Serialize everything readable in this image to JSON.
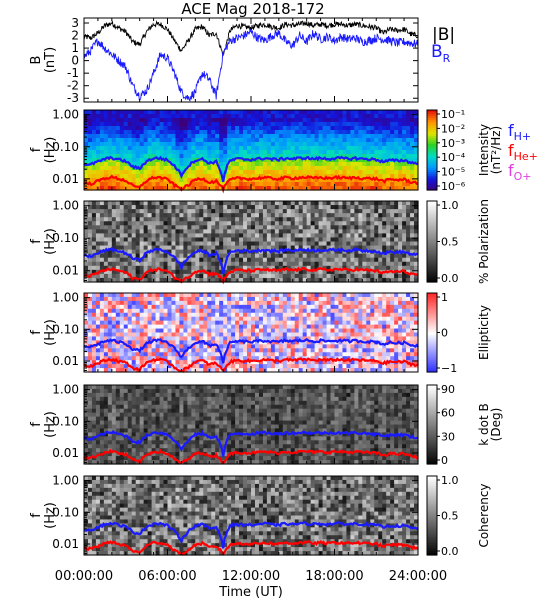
{
  "title": "ACE Mag 2018-172",
  "colors": {
    "background": "#ffffff",
    "bmag": "#000000",
    "br": "#1a1aff",
    "fH": "#1a1aff",
    "fHe": "#ff0000",
    "fO": "#e040e0"
  },
  "legend": {
    "bmag": "|B|",
    "br": "B",
    "br_sub": "R",
    "fH": "f",
    "fH_sub": "H+",
    "fHe": "f",
    "fHe_sub": "He+",
    "fO": "f",
    "fO_sub": "O+"
  },
  "x_axis": {
    "label": "Time (UT)",
    "range_hours": [
      0,
      24
    ],
    "ticks": [
      "00:00:00",
      "06:00:00",
      "12:00:00",
      "18:00:00",
      "24:00:00"
    ]
  },
  "chart_data": [
    {
      "type": "line",
      "panel": "field",
      "ylabel": "B",
      "yunit": "(nT)",
      "ylim": [
        -3.3,
        3.4
      ],
      "yticks": [
        -3,
        -2,
        -1,
        0,
        1,
        2,
        3
      ],
      "series": [
        {
          "name": "|B|",
          "x": [
            0,
            0.5,
            1,
            1.5,
            2,
            2.5,
            3,
            3.5,
            4,
            4.5,
            5,
            5.5,
            6,
            6.5,
            7,
            7.5,
            8,
            8.5,
            9,
            9.5,
            10,
            10.5,
            11,
            11.5,
            12,
            12.5,
            13,
            13.5,
            14,
            14.5,
            15,
            15.5,
            16,
            16.5,
            17,
            17.5,
            18,
            18.5,
            19,
            19.5,
            20,
            20.5,
            21,
            21.5,
            22,
            22.5,
            23,
            23.5,
            24
          ],
          "values": [
            1.9,
            1.8,
            2.2,
            2.8,
            3.0,
            2.6,
            2.3,
            1.5,
            1.3,
            2.3,
            2.9,
            2.9,
            2.5,
            1.6,
            0.8,
            1.6,
            2.5,
            2.7,
            2.0,
            2.2,
            0.4,
            2.4,
            2.8,
            2.7,
            2.6,
            2.8,
            2.9,
            2.7,
            2.6,
            2.9,
            2.8,
            2.9,
            3.0,
            2.8,
            2.9,
            2.8,
            2.9,
            2.9,
            2.8,
            2.9,
            2.8,
            2.7,
            2.6,
            2.2,
            2.5,
            2.4,
            2.5,
            2.1,
            2.0
          ]
        },
        {
          "name": "B_R",
          "x": [
            0,
            0.5,
            1,
            1.5,
            2,
            2.5,
            3,
            3.5,
            4,
            4.5,
            5,
            5.5,
            6,
            6.5,
            7,
            7.5,
            8,
            8.5,
            9,
            9.5,
            10,
            10.5,
            11,
            11.5,
            12,
            12.5,
            13,
            13.5,
            14,
            14.5,
            15,
            15.5,
            16,
            16.5,
            17,
            17.5,
            18,
            18.5,
            19,
            19.5,
            20,
            20.5,
            21,
            21.5,
            22,
            22.5,
            23,
            23.5,
            24
          ],
          "values": [
            0.3,
            0.8,
            1.6,
            1.0,
            0.5,
            0.0,
            -0.5,
            -2.0,
            -2.8,
            -2.4,
            -1.0,
            0.5,
            0.2,
            -1.0,
            -2.5,
            -3.0,
            -2.5,
            -1.0,
            -1.5,
            -2.8,
            0.6,
            1.6,
            1.8,
            2.0,
            2.3,
            1.8,
            1.6,
            2.0,
            2.2,
            1.5,
            1.2,
            2.0,
            1.5,
            2.2,
            1.7,
            1.9,
            1.6,
            1.9,
            1.7,
            1.8,
            1.5,
            1.6,
            1.8,
            1.7,
            1.6,
            1.4,
            1.5,
            1.4,
            1.3
          ]
        }
      ]
    },
    {
      "type": "heatmap",
      "panel": "intensity",
      "ylabel": "f",
      "yunit": "(Hz)",
      "ytick_labels": [
        "1.00",
        "0.10",
        "0.01"
      ],
      "colorbar_label": "Intensity",
      "colorbar_unit": "(nT²/Hz)",
      "colorbar_ticks": [
        "10⁻¹",
        "10⁻²",
        "10⁻³",
        "10⁻⁴",
        "10⁻⁵",
        "10⁻⁶"
      ],
      "colormap": "rainbow",
      "ylim_hz": [
        0.0045,
        1.4
      ]
    },
    {
      "type": "heatmap",
      "panel": "polarization",
      "ylabel": "f",
      "yunit": "(Hz)",
      "ytick_labels": [
        "1.00",
        "0.10",
        "0.01"
      ],
      "colorbar_label": "% Polarization",
      "colorbar_unit": "",
      "colorbar_ticks": [
        "1.0",
        "0.5",
        "0.0"
      ],
      "colormap": "gray",
      "ylim_hz": [
        0.0045,
        1.4
      ]
    },
    {
      "type": "heatmap",
      "panel": "ellipticity",
      "ylabel": "f",
      "yunit": "(Hz)",
      "ytick_labels": [
        "1.00",
        "0.10",
        "0.01"
      ],
      "colorbar_label": "Ellipticity",
      "colorbar_unit": "",
      "colorbar_ticks": [
        "1",
        "0",
        "−1"
      ],
      "colormap": "bwr",
      "ylim_hz": [
        0.0045,
        1.4
      ]
    },
    {
      "type": "heatmap",
      "panel": "kdotb",
      "ylabel": "f",
      "yunit": "(Hz)",
      "ytick_labels": [
        "1.00",
        "0.10",
        "0.01"
      ],
      "colorbar_label": "k dot B",
      "colorbar_unit": "(Deg)",
      "colorbar_ticks": [
        "90",
        "60",
        "30",
        "0"
      ],
      "colormap": "gray",
      "ylim_hz": [
        0.0045,
        1.4
      ]
    },
    {
      "type": "heatmap",
      "panel": "coherency",
      "ylabel": "f",
      "yunit": "(Hz)",
      "ytick_labels": [
        "1.00",
        "0.10",
        "0.01"
      ],
      "colorbar_label": "Coherency",
      "colorbar_unit": "",
      "colorbar_ticks": [
        "1.0",
        "0.5",
        "0.0"
      ],
      "colormap": "gray",
      "ylim_hz": [
        0.0045,
        1.4
      ]
    }
  ],
  "gyrofrequency_lines": {
    "x_hours": [
      0,
      0.5,
      1,
      1.5,
      2,
      2.5,
      3,
      3.5,
      4,
      4.5,
      5,
      5.5,
      6,
      6.5,
      7,
      7.5,
      8,
      8.5,
      9,
      9.5,
      10,
      10.5,
      11,
      11.5,
      12,
      12.5,
      13,
      13.5,
      14,
      14.5,
      15,
      15.5,
      16,
      16.5,
      17,
      17.5,
      18,
      18.5,
      19,
      19.5,
      20,
      20.5,
      21,
      21.5,
      22,
      22.5,
      23,
      23.5,
      24
    ],
    "fH_hz": [
      0.029,
      0.028,
      0.034,
      0.042,
      0.045,
      0.04,
      0.035,
      0.024,
      0.021,
      0.035,
      0.044,
      0.044,
      0.038,
      0.025,
      0.013,
      0.025,
      0.038,
      0.041,
      0.031,
      0.034,
      0.008,
      0.037,
      0.042,
      0.041,
      0.04,
      0.042,
      0.044,
      0.041,
      0.04,
      0.044,
      0.042,
      0.044,
      0.045,
      0.042,
      0.044,
      0.042,
      0.044,
      0.044,
      0.042,
      0.044,
      0.042,
      0.041,
      0.04,
      0.034,
      0.038,
      0.037,
      0.038,
      0.032,
      0.03
    ],
    "fHe_hz": [
      0.0073,
      0.007,
      0.0085,
      0.0105,
      0.0113,
      0.01,
      0.0088,
      0.006,
      0.0053,
      0.0088,
      0.011,
      0.011,
      0.0095,
      0.0063,
      0.0048,
      0.0063,
      0.0095,
      0.0103,
      0.0078,
      0.0085,
      0.0048,
      0.0093,
      0.0105,
      0.0103,
      0.01,
      0.0105,
      0.011,
      0.0103,
      0.01,
      0.011,
      0.0105,
      0.011,
      0.0113,
      0.0105,
      0.011,
      0.0105,
      0.011,
      0.011,
      0.0105,
      0.011,
      0.0105,
      0.0103,
      0.01,
      0.0085,
      0.0095,
      0.0093,
      0.0095,
      0.008,
      0.0075
    ]
  }
}
